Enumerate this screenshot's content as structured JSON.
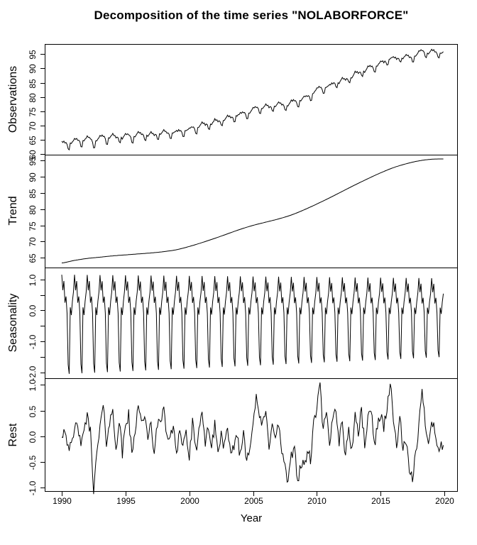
{
  "title": "Decomposition of the time series \"NOLABORFORCE\"",
  "xlabel": "Year",
  "colors": {
    "line": "#000000",
    "background": "#ffffff",
    "text": "#000000"
  },
  "x_axis": {
    "label": "Year",
    "tick_labels": [
      "1990",
      "1995",
      "2000",
      "2005",
      "2010",
      "2015",
      "2020"
    ],
    "tick_years": [
      1990,
      1995,
      2000,
      2005,
      2010,
      2015,
      2020
    ],
    "start_year": 1990,
    "end_year": 2019.917,
    "frequency_per_year": 12,
    "grid": false
  },
  "chart_data": [
    {
      "type": "line",
      "name": "observations",
      "ylabel": "Observations",
      "ylim": [
        59.8,
        98.3
      ],
      "yticks": [
        {
          "v": 60,
          "label": "60"
        },
        {
          "v": 65,
          "label": "65"
        },
        {
          "v": 70,
          "label": "70"
        },
        {
          "v": 75,
          "label": "75"
        },
        {
          "v": 80,
          "label": "80"
        },
        {
          "v": 85,
          "label": "85"
        },
        {
          "v": 90,
          "label": "90"
        },
        {
          "v": 95,
          "label": "95"
        }
      ],
      "derived": "trend + seasonality + rest"
    },
    {
      "type": "line",
      "name": "trend",
      "ylabel": "Trend",
      "ylim": [
        62.0,
        96.8
      ],
      "yticks": [
        {
          "v": 65,
          "label": "65"
        },
        {
          "v": 70,
          "label": "70"
        },
        {
          "v": 75,
          "label": "75"
        },
        {
          "v": 80,
          "label": "80"
        },
        {
          "v": 85,
          "label": "85"
        },
        {
          "v": 90,
          "label": "90"
        },
        {
          "v": 95,
          "label": "95"
        }
      ],
      "annual_values": {
        "start_year": 1990,
        "values": [
          63.4,
          64.2,
          64.8,
          65.2,
          65.6,
          65.9,
          66.2,
          66.5,
          66.9,
          67.5,
          68.5,
          69.7,
          71.0,
          72.4,
          73.8,
          75.0,
          76.0,
          77.0,
          78.2,
          79.8,
          81.6,
          83.5,
          85.5,
          87.5,
          89.4,
          91.2,
          92.8,
          94.0,
          94.9,
          95.4,
          95.5
        ]
      }
    },
    {
      "type": "line",
      "name": "seasonality",
      "ylabel": "Seasonality",
      "ylim": [
        -2.18,
        1.38
      ],
      "yticks": [
        {
          "v": 1.0,
          "label": "1.0"
        },
        {
          "v": 0.5,
          "label": ""
        },
        {
          "v": 0.0,
          "label": "0.0"
        },
        {
          "v": -0.5,
          "label": ""
        },
        {
          "v": -1.0,
          "label": "-1.0"
        },
        {
          "v": -1.5,
          "label": ""
        },
        {
          "v": -2.0,
          "label": "-2.0"
        }
      ],
      "monthly_pattern": [
        1.15,
        0.65,
        0.95,
        0.25,
        0.45,
        -0.1,
        -1.75,
        -2.05,
        0.1,
        -0.15,
        0.3,
        0.6
      ],
      "negative_amplitude": {
        "start": 1.0,
        "end": 0.73
      },
      "positive_amplitude": {
        "start": 1.0,
        "end": 0.9
      }
    },
    {
      "type": "line",
      "name": "rest",
      "ylabel": "Rest",
      "ylim": [
        -1.08,
        1.13
      ],
      "yticks": [
        {
          "v": 1.0,
          "label": "1.0"
        },
        {
          "v": 0.5,
          "label": "0.5"
        },
        {
          "v": 0.0,
          "label": "0.0"
        },
        {
          "v": -0.5,
          "label": "-0.5"
        },
        {
          "v": -1.0,
          "label": "-1.0"
        }
      ],
      "quarterly_values": {
        "start_year": 1990,
        "per_year": 4,
        "values": [
          0.05,
          0.15,
          -0.15,
          -0.25,
          0.1,
          0.3,
          -0.3,
          0.2,
          0.35,
          0.1,
          -1.0,
          -0.4,
          0.2,
          0.55,
          -0.1,
          0.3,
          0.45,
          -0.2,
          0.3,
          -0.35,
          0.25,
          0.4,
          -0.4,
          0.1,
          0.7,
          0.25,
          0.45,
          -0.15,
          0.3,
          -0.35,
          0.2,
          0.4,
          0.45,
          0.05,
          -0.1,
          0.25,
          -0.3,
          0.15,
          -0.2,
          0.1,
          -0.45,
          0.25,
          -0.3,
          0.15,
          0.35,
          -0.15,
          0.25,
          -0.3,
          0.3,
          -0.35,
          0.05,
          -0.2,
          0.1,
          -0.45,
          -0.15,
          0.05,
          -0.4,
          0.1,
          -0.45,
          -0.15,
          0.3,
          0.7,
          0.4,
          0.2,
          0.45,
          -0.2,
          0.35,
          -0.1,
          0.25,
          -0.3,
          -0.6,
          -0.95,
          -0.4,
          -0.2,
          -0.85,
          -0.55,
          -0.6,
          -0.3,
          -0.45,
          0.2,
          0.6,
          0.95,
          0.1,
          0.45,
          -0.25,
          0.4,
          0.55,
          -0.1,
          0.35,
          -0.45,
          0.2,
          -0.3,
          0.45,
          0.05,
          0.5,
          -0.15,
          0.3,
          0.6,
          -0.2,
          0.25,
          0.4,
          0.2,
          0.55,
          1.05,
          0.3,
          -0.15,
          0.35,
          -0.25,
          -0.1,
          -0.75,
          -0.85,
          -0.3,
          0.2,
          0.85,
          0.3,
          -0.15,
          0.4,
          0.1,
          -0.3,
          -0.2
        ]
      },
      "jitter": {
        "seed": 42,
        "amplitude": 0.13
      }
    }
  ]
}
